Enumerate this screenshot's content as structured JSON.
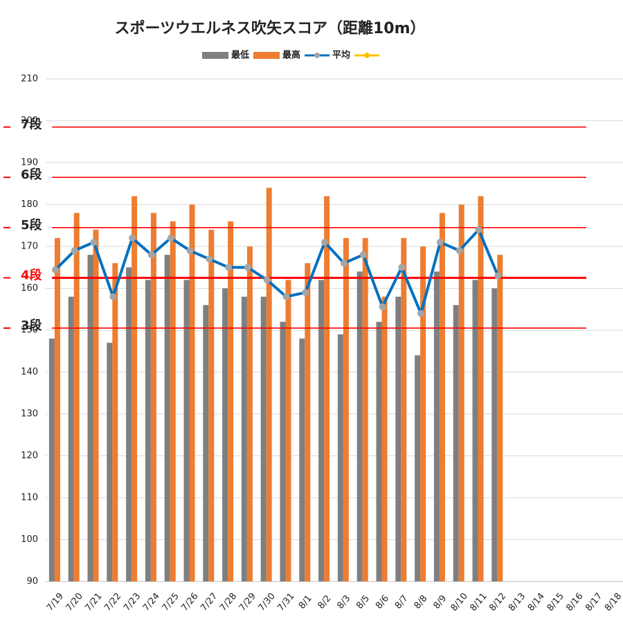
{
  "chart_data": {
    "type": "bar",
    "title": "スポーツウエルネス吹矢スコア（距離10m）",
    "categories": [
      "7/19",
      "7/20",
      "7/21",
      "7/22",
      "7/23",
      "7/24",
      "7/25",
      "7/26",
      "7/27",
      "7/28",
      "7/29",
      "7/30",
      "7/31",
      "8/1",
      "8/2",
      "8/3",
      "8/5",
      "8/6",
      "8/7",
      "8/8",
      "8/9",
      "8/10",
      "8/11",
      "8/12",
      "8/13",
      "8/14",
      "8/15",
      "8/16",
      "8/17",
      "8/18"
    ],
    "series": [
      {
        "name": "最低",
        "color": "#7f7f7f",
        "kind": "bar",
        "values": [
          148,
          158,
          168,
          147,
          165,
          162,
          168,
          162,
          156,
          160,
          158,
          158,
          152,
          148,
          162,
          149,
          164,
          152,
          158,
          144,
          164,
          156,
          162,
          160,
          null,
          null,
          null,
          null,
          null,
          null
        ]
      },
      {
        "name": "最高",
        "color": "#ed7d31",
        "kind": "bar",
        "values": [
          172,
          178,
          174,
          166,
          182,
          178,
          176,
          180,
          174,
          176,
          170,
          184,
          162,
          166,
          182,
          172,
          172,
          158,
          172,
          170,
          178,
          180,
          182,
          168,
          null,
          null,
          null,
          null,
          null,
          null
        ]
      },
      {
        "name": "平均",
        "color": "#0070c0",
        "marker_color": "#a5a5a5",
        "kind": "line",
        "values": [
          164.4,
          169,
          171,
          158,
          172,
          168,
          172,
          169,
          167,
          165,
          165,
          162,
          158,
          159,
          171,
          166,
          168,
          155.6,
          165,
          154,
          171,
          169,
          174,
          163,
          null,
          null,
          null,
          null,
          null,
          null
        ]
      },
      {
        "color": "#ffc000",
        "kind": "line",
        "values": [
          null,
          null,
          null,
          null,
          null,
          null,
          null,
          null,
          null,
          null,
          null,
          null,
          null,
          null,
          null,
          null,
          null,
          null,
          null,
          null,
          null,
          null,
          null,
          null,
          null,
          null,
          null,
          null,
          null,
          null
        ]
      }
    ],
    "reference_lines": [
      {
        "label": "7段",
        "value": 198.5,
        "color": "#ff0000",
        "label_color": "#222"
      },
      {
        "label": "6段",
        "value": 186.5,
        "color": "#ff0000",
        "label_color": "#222"
      },
      {
        "label": "5段",
        "value": 174.5,
        "color": "#ff0000",
        "label_color": "#222"
      },
      {
        "label": "4段",
        "value": 162.5,
        "color": "#ff0000",
        "label_color": "#ff0000",
        "emphasis": true
      },
      {
        "label": "3段",
        "value": 150.5,
        "color": "#ff0000",
        "label_color": "#222"
      }
    ],
    "ylim": [
      90,
      210
    ],
    "yticks": [
      90,
      100,
      110,
      120,
      130,
      140,
      150,
      160,
      170,
      180,
      190,
      200,
      210
    ],
    "grid": true,
    "legend": "top"
  }
}
